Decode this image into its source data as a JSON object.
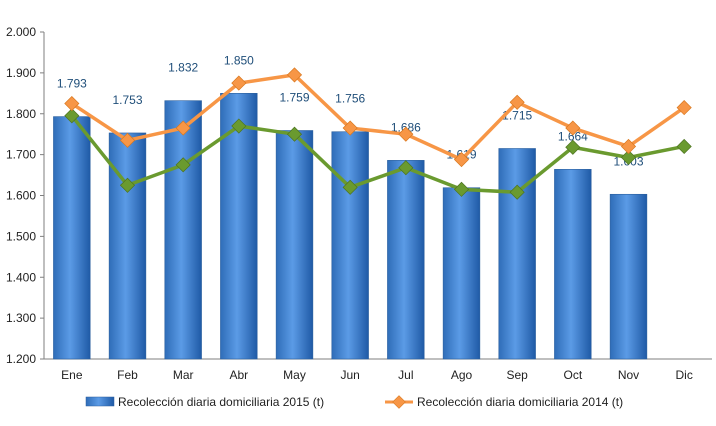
{
  "chart_data": {
    "type": "bar",
    "categories": [
      "Ene",
      "Feb",
      "Mar",
      "Abr",
      "May",
      "Jun",
      "Jul",
      "Ago",
      "Sep",
      "Oct",
      "Nov",
      "Dic"
    ],
    "ylim": [
      1200,
      2000
    ],
    "yticks": [
      1200,
      1300,
      1400,
      1500,
      1600,
      1700,
      1800,
      1900,
      2000
    ],
    "ytick_labels": [
      "1.200",
      "1.300",
      "1.400",
      "1.500",
      "1.600",
      "1.700",
      "1.800",
      "1.900",
      "2.000"
    ],
    "grid": false,
    "legend": "bottom",
    "series": [
      {
        "name": "Recolección diaria domiciliaria 2015 (t)",
        "kind": "bar",
        "color": "#3a7dd0",
        "values": [
          1793,
          1753,
          1832,
          1850,
          1759,
          1756,
          1686,
          1619,
          1715,
          1664,
          1603,
          null
        ],
        "labels": [
          "1.793",
          "1.753",
          "1.832",
          "1.850",
          "1.759",
          "1.756",
          "1.686",
          "1.619",
          "1.715",
          "1.664",
          "1.603",
          ""
        ]
      },
      {
        "name": "Recolección diaria domiciliaria 2014 (t)",
        "kind": "line",
        "color": "#f79646",
        "values": [
          1825,
          1735,
          1765,
          1875,
          1895,
          1765,
          1750,
          1688,
          1828,
          1765,
          1720,
          1815
        ]
      },
      {
        "name": "",
        "kind": "line",
        "color": "#6a9a2f",
        "values": [
          1795,
          1625,
          1675,
          1770,
          1750,
          1620,
          1668,
          1615,
          1608,
          1718,
          1693,
          1720
        ]
      }
    ]
  }
}
